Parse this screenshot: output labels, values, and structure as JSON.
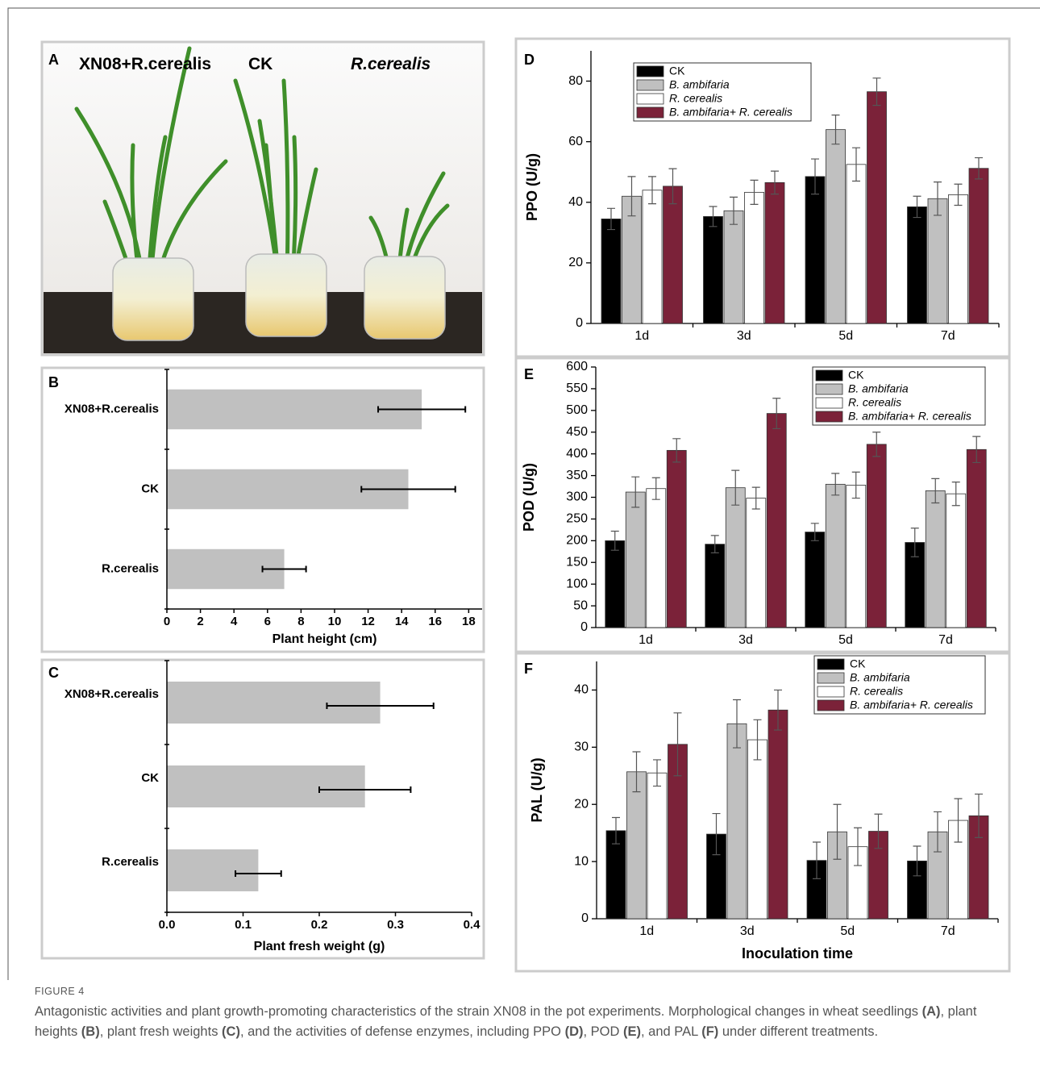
{
  "photo": {
    "panel": "A",
    "labels": [
      "XN08+R.cerealis",
      "CK",
      "R.cerealis"
    ]
  },
  "chart_data": [
    {
      "type": "bar",
      "orientation": "horizontal",
      "panel": "B",
      "categories": [
        "XN08+R.cerealis",
        "CK",
        "R.cerealis"
      ],
      "values": [
        15.2,
        14.4,
        7.0
      ],
      "errors": [
        2.6,
        2.8,
        1.3
      ],
      "color": "#c0c0c0",
      "xlim": [
        0,
        18.8
      ],
      "xticks": [
        0,
        2,
        4,
        6,
        8,
        10,
        12,
        14,
        16,
        18
      ],
      "xlabel": "Plant height (cm)"
    },
    {
      "type": "bar",
      "orientation": "horizontal",
      "panel": "C",
      "categories": [
        "XN08+R.cerealis",
        "CK",
        "R.cerealis"
      ],
      "values": [
        0.28,
        0.26,
        0.12
      ],
      "errors": [
        0.07,
        0.06,
        0.03
      ],
      "color": "#c0c0c0",
      "xlim": [
        0,
        0.4
      ],
      "xticks": [
        {
          "value": 0,
          "label": "0.0"
        },
        0.1,
        0.2,
        0.3,
        0.4
      ],
      "xlabel": "Plant fresh weight (g)"
    },
    {
      "type": "bar",
      "panel": "D",
      "categories": [
        "1d",
        "3d",
        "5d",
        "7d"
      ],
      "ylabel": "PPO (U/g)",
      "ylim": [
        0,
        90
      ],
      "yticks": [
        0,
        20,
        40,
        60,
        80
      ],
      "series": [
        {
          "name": "CK",
          "color": "#000000",
          "values": [
            34.5,
            35.3,
            48.5,
            38.5
          ],
          "errors": [
            3.5,
            3.3,
            5.8,
            3.5
          ]
        },
        {
          "name": "B. ambifaria",
          "color": "#c0c0c0",
          "values": [
            42,
            37.2,
            64,
            41.2
          ],
          "errors": [
            6.5,
            4.5,
            4.8,
            5.5
          ]
        },
        {
          "name": "R. cerealis",
          "color": "#ffffff",
          "values": [
            44,
            43.3,
            52.5,
            42.5
          ],
          "errors": [
            4.5,
            4,
            5.5,
            3.5
          ]
        },
        {
          "name": "B. ambifaria+ R. cerealis",
          "color": "#7b2239",
          "values": [
            45.3,
            46.5,
            76.5,
            51.2
          ],
          "errors": [
            5.8,
            3.8,
            4.5,
            3.5
          ]
        }
      ]
    },
    {
      "type": "bar",
      "panel": "E",
      "categories": [
        "1d",
        "3d",
        "5d",
        "7d"
      ],
      "ylabel": "POD (U/g)",
      "ylim": [
        0,
        600
      ],
      "yticks": [
        0,
        50,
        100,
        150,
        200,
        250,
        300,
        350,
        400,
        450,
        500,
        550,
        600
      ],
      "series": [
        {
          "name": "CK",
          "color": "#000000",
          "values": [
            200,
            192,
            220,
            196
          ],
          "errors": [
            22,
            20,
            20,
            33
          ]
        },
        {
          "name": "B. ambifaria",
          "color": "#c0c0c0",
          "values": [
            312,
            322,
            330,
            315
          ],
          "errors": [
            35,
            40,
            25,
            28
          ]
        },
        {
          "name": "R. cerealis",
          "color": "#ffffff",
          "values": [
            320,
            298,
            328,
            308
          ],
          "errors": [
            25,
            25,
            30,
            27
          ]
        },
        {
          "name": "B. ambifaria+ R. cerealis",
          "color": "#7b2239",
          "values": [
            408,
            493,
            422,
            410
          ],
          "errors": [
            27,
            35,
            28,
            30
          ]
        }
      ]
    },
    {
      "type": "bar",
      "panel": "F",
      "categories": [
        "1d",
        "3d",
        "5d",
        "7d"
      ],
      "ylabel": "PAL (U/g)",
      "xlabel": "Inoculation time",
      "ylim": [
        0,
        45
      ],
      "yticks": [
        0,
        10,
        20,
        30,
        40
      ],
      "series": [
        {
          "name": "CK",
          "color": "#000000",
          "values": [
            15.4,
            14.8,
            10.2,
            10.1
          ],
          "errors": [
            2.3,
            3.6,
            3.2,
            2.6
          ]
        },
        {
          "name": "B. ambifaria",
          "color": "#c0c0c0",
          "values": [
            25.7,
            34.1,
            15.2,
            15.2
          ],
          "errors": [
            3.5,
            4.2,
            4.8,
            3.5
          ]
        },
        {
          "name": "R. cerealis",
          "color": "#ffffff",
          "values": [
            25.5,
            31.3,
            12.6,
            17.2
          ],
          "errors": [
            2.3,
            3.5,
            3.3,
            3.8
          ]
        },
        {
          "name": "B. ambifaria+ R. cerealis",
          "color": "#7b2239",
          "values": [
            30.5,
            36.5,
            15.3,
            18
          ],
          "errors": [
            5.5,
            3.5,
            3,
            3.8
          ]
        }
      ]
    }
  ],
  "figure": {
    "label": "FIGURE 4",
    "caption": [
      "Antagonistic activities and plant growth-promoting characteristics of the strain XN08 in the pot experiments. Morphological changes in wheat seedlings ",
      "(A)",
      ", plant heights ",
      "(B)",
      ", plant fresh weights ",
      "(C)",
      ", and the activities of defense enzymes, including PPO ",
      "(D)",
      ", POD ",
      "(E)",
      ", and PAL ",
      "(F)",
      " under different treatments."
    ]
  }
}
